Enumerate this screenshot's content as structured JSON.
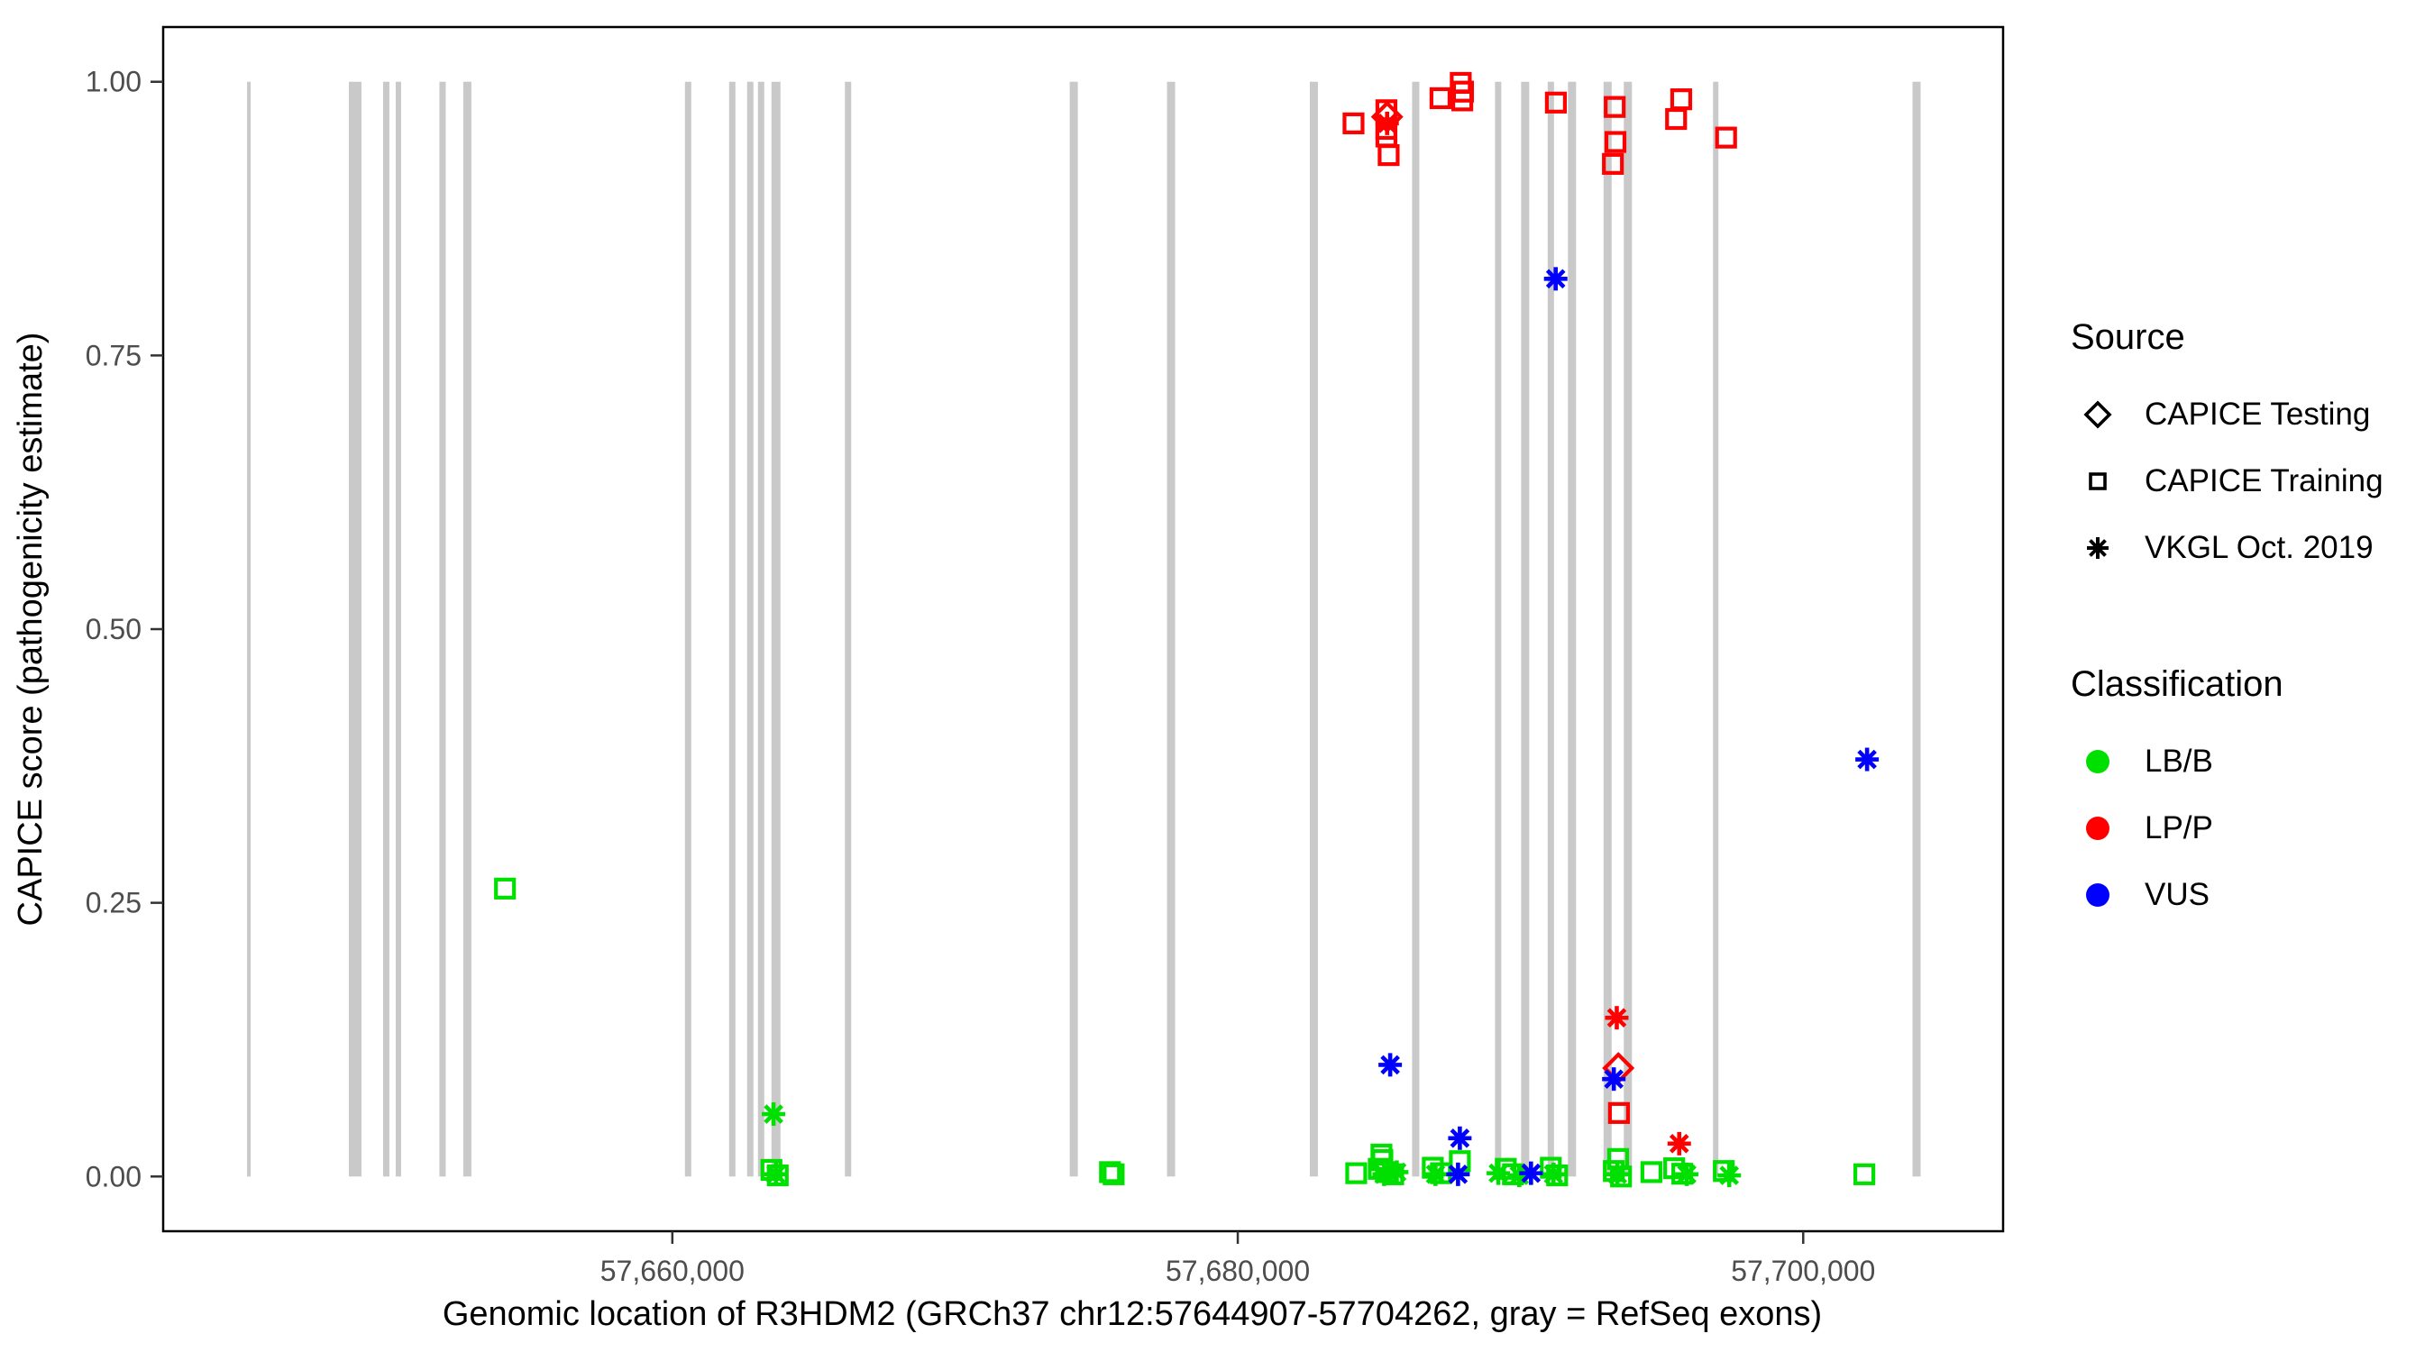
{
  "chart_data": {
    "type": "scatter",
    "title": "",
    "xlabel": "Genomic location of R3HDM2 (GRCh37 chr12:57644907-57704262, gray = RefSeq exons)",
    "ylabel": "CAPICE score (pathogenicity estimate)",
    "x_domain": [
      57641990,
      57707070
    ],
    "y_domain": [
      -0.05,
      1.05
    ],
    "grid": "off",
    "x_ticks": [
      {
        "value": 57660000,
        "label": "57,660,000"
      },
      {
        "value": 57680000,
        "label": "57,680,000"
      },
      {
        "value": 57700000,
        "label": "57,700,000"
      }
    ],
    "y_ticks": [
      {
        "value": 0.0,
        "label": "0.00"
      },
      {
        "value": 0.25,
        "label": "0.25"
      },
      {
        "value": 0.5,
        "label": "0.50"
      },
      {
        "value": 0.75,
        "label": "0.75"
      },
      {
        "value": 1.0,
        "label": "1.00"
      }
    ],
    "exon_color": "#C9C9C9",
    "exon_y_span": [
      0,
      1
    ],
    "exons": [
      {
        "start": 57644957,
        "end": 57645085
      },
      {
        "start": 57648558,
        "end": 57649004
      },
      {
        "start": 57649769,
        "end": 57649992
      },
      {
        "start": 57650215,
        "end": 57650406
      },
      {
        "start": 57651761,
        "end": 57651984
      },
      {
        "start": 57652605,
        "end": 57652892
      },
      {
        "start": 57660446,
        "end": 57660669
      },
      {
        "start": 57662008,
        "end": 57662231
      },
      {
        "start": 57662645,
        "end": 57662868
      },
      {
        "start": 57663028,
        "end": 57663251
      },
      {
        "start": 57663506,
        "end": 57663825
      },
      {
        "start": 57666104,
        "end": 57666327
      },
      {
        "start": 57674055,
        "end": 57674342
      },
      {
        "start": 57677497,
        "end": 57677784
      },
      {
        "start": 57682549,
        "end": 57682835
      },
      {
        "start": 57686166,
        "end": 57686421
      },
      {
        "start": 57689098,
        "end": 57689321
      },
      {
        "start": 57690022,
        "end": 57690309
      },
      {
        "start": 57690962,
        "end": 57691185
      },
      {
        "start": 57691679,
        "end": 57691966
      },
      {
        "start": 57692938,
        "end": 57693225
      },
      {
        "start": 57693655,
        "end": 57693942
      },
      {
        "start": 57696810,
        "end": 57697001
      },
      {
        "start": 57703866,
        "end": 57704152
      }
    ],
    "series_colors": {
      "LB/B": "#00E000",
      "LP/P": "#FF0000",
      "VUS": "#0000FF"
    },
    "shapes": {
      "CAPICE Testing": "diamond",
      "CAPICE Training": "square",
      "VKGL Oct. 2019": "asterisk"
    },
    "points": [
      {
        "pos": 57654081,
        "score": 0.263,
        "source": "CAPICE Training",
        "class": "LB/B"
      },
      {
        "pos": 57663579,
        "score": 0.057,
        "source": "VKGL Oct. 2019",
        "class": "LB/B"
      },
      {
        "pos": 57663505,
        "score": 0.006,
        "source": "CAPICE Training",
        "class": "LB/B"
      },
      {
        "pos": 57663665,
        "score": 0.002,
        "source": "VKGL Oct. 2019",
        "class": "LB/B"
      },
      {
        "pos": 57663729,
        "score": 0.001,
        "source": "CAPICE Training",
        "class": "LB/B"
      },
      {
        "pos": 57675480,
        "score": 0.004,
        "source": "CAPICE Training",
        "class": "LB/B"
      },
      {
        "pos": 57675610,
        "score": 0.002,
        "source": "CAPICE Training",
        "class": "LB/B"
      },
      {
        "pos": 57684190,
        "score": 0.003,
        "source": "CAPICE Training",
        "class": "LB/B"
      },
      {
        "pos": 57685082,
        "score": 0.02,
        "source": "CAPICE Training",
        "class": "LB/B"
      },
      {
        "pos": 57685114,
        "score": 0.015,
        "source": "CAPICE Training",
        "class": "LB/B"
      },
      {
        "pos": 57684987,
        "score": 0.007,
        "source": "CAPICE Training",
        "class": "LB/B"
      },
      {
        "pos": 57685242,
        "score": 0.004,
        "source": "CAPICE Training",
        "class": "LB/B"
      },
      {
        "pos": 57685497,
        "score": 0.002,
        "source": "CAPICE Training",
        "class": "LB/B"
      },
      {
        "pos": 57685178,
        "score": 0.002,
        "source": "VKGL Oct. 2019",
        "class": "LB/B"
      },
      {
        "pos": 57685623,
        "score": 0.004,
        "source": "VKGL Oct. 2019",
        "class": "LB/B"
      },
      {
        "pos": 57686898,
        "score": 0.008,
        "source": "CAPICE Training",
        "class": "LB/B"
      },
      {
        "pos": 57687185,
        "score": 0.003,
        "source": "CAPICE Training",
        "class": "LB/B"
      },
      {
        "pos": 57686994,
        "score": 0.002,
        "source": "VKGL Oct. 2019",
        "class": "LB/B"
      },
      {
        "pos": 57687855,
        "score": 0.014,
        "source": "CAPICE Training",
        "class": "LB/B"
      },
      {
        "pos": 57689215,
        "score": 0.003,
        "source": "VKGL Oct. 2019",
        "class": "LB/B"
      },
      {
        "pos": 57689480,
        "score": 0.007,
        "source": "CAPICE Training",
        "class": "LB/B"
      },
      {
        "pos": 57689734,
        "score": 0.002,
        "source": "CAPICE Training",
        "class": "LB/B"
      },
      {
        "pos": 57689957,
        "score": 0.001,
        "source": "VKGL Oct. 2019",
        "class": "LB/B"
      },
      {
        "pos": 57691073,
        "score": 0.008,
        "source": "CAPICE Training",
        "class": "LB/B"
      },
      {
        "pos": 57691168,
        "score": 0.002,
        "source": "VKGL Oct. 2019",
        "class": "LB/B"
      },
      {
        "pos": 57691296,
        "score": 0.001,
        "source": "CAPICE Training",
        "class": "LB/B"
      },
      {
        "pos": 57693454,
        "score": 0.016,
        "source": "CAPICE Training",
        "class": "LB/B"
      },
      {
        "pos": 57693301,
        "score": 0.005,
        "source": "CAPICE Training",
        "class": "LB/B"
      },
      {
        "pos": 57693428,
        "score": 0.002,
        "source": "VKGL Oct. 2019",
        "class": "LB/B"
      },
      {
        "pos": 57693556,
        "score": 0.0,
        "source": "CAPICE Training",
        "class": "LB/B"
      },
      {
        "pos": 57694630,
        "score": 0.004,
        "source": "CAPICE Training",
        "class": "LB/B"
      },
      {
        "pos": 57695436,
        "score": 0.0075,
        "source": "CAPICE Training",
        "class": "LB/B"
      },
      {
        "pos": 57695723,
        "score": 0.0025,
        "source": "CAPICE Training",
        "class": "LB/B"
      },
      {
        "pos": 57695882,
        "score": 0.002,
        "source": "VKGL Oct. 2019",
        "class": "LB/B"
      },
      {
        "pos": 57697192,
        "score": 0.005,
        "source": "CAPICE Training",
        "class": "LB/B"
      },
      {
        "pos": 57697383,
        "score": 0.001,
        "source": "VKGL Oct. 2019",
        "class": "LB/B"
      },
      {
        "pos": 57702163,
        "score": 0.002,
        "source": "CAPICE Training",
        "class": "LB/B"
      },
      {
        "pos": 57684094,
        "score": 0.962,
        "source": "CAPICE Training",
        "class": "LP/P"
      },
      {
        "pos": 57685257,
        "score": 0.974,
        "source": "CAPICE Training",
        "class": "LP/P"
      },
      {
        "pos": 57685282,
        "score": 0.968,
        "source": "CAPICE Testing",
        "class": "LP/P"
      },
      {
        "pos": 57685282,
        "score": 0.962,
        "source": "VKGL Oct. 2019",
        "class": "LP/P"
      },
      {
        "pos": 57685257,
        "score": 0.957,
        "source": "CAPICE Training",
        "class": "LP/P"
      },
      {
        "pos": 57685257,
        "score": 0.95,
        "source": "CAPICE Training",
        "class": "LP/P"
      },
      {
        "pos": 57685337,
        "score": 0.933,
        "source": "CAPICE Training",
        "class": "LP/P"
      },
      {
        "pos": 57687170,
        "score": 0.985,
        "source": "CAPICE Training",
        "class": "LP/P"
      },
      {
        "pos": 57687887,
        "score": 0.999,
        "source": "CAPICE Training",
        "class": "LP/P"
      },
      {
        "pos": 57687967,
        "score": 0.991,
        "source": "CAPICE Training",
        "class": "LP/P"
      },
      {
        "pos": 57687941,
        "score": 0.983,
        "source": "CAPICE Training",
        "class": "LP/P"
      },
      {
        "pos": 57691251,
        "score": 0.981,
        "source": "CAPICE Training",
        "class": "LP/P"
      },
      {
        "pos": 57693333,
        "score": 0.977,
        "source": "CAPICE Training",
        "class": "LP/P"
      },
      {
        "pos": 57693358,
        "score": 0.945,
        "source": "CAPICE Training",
        "class": "LP/P"
      },
      {
        "pos": 57693269,
        "score": 0.925,
        "source": "CAPICE Training",
        "class": "LP/P"
      },
      {
        "pos": 57695685,
        "score": 0.984,
        "source": "CAPICE Training",
        "class": "LP/P"
      },
      {
        "pos": 57695503,
        "score": 0.966,
        "source": "CAPICE Training",
        "class": "LP/P"
      },
      {
        "pos": 57697272,
        "score": 0.949,
        "source": "CAPICE Training",
        "class": "LP/P"
      },
      {
        "pos": 57693406,
        "score": 0.145,
        "source": "VKGL Oct. 2019",
        "class": "LP/P"
      },
      {
        "pos": 57693460,
        "score": 0.099,
        "source": "CAPICE Testing",
        "class": "LP/P"
      },
      {
        "pos": 57693482,
        "score": 0.058,
        "source": "CAPICE Training",
        "class": "LP/P"
      },
      {
        "pos": 57695615,
        "score": 0.03,
        "source": "VKGL Oct. 2019",
        "class": "LP/P"
      },
      {
        "pos": 57691245,
        "score": 0.82,
        "source": "VKGL Oct. 2019",
        "class": "VUS"
      },
      {
        "pos": 57702259,
        "score": 0.381,
        "source": "VKGL Oct. 2019",
        "class": "VUS"
      },
      {
        "pos": 57685391,
        "score": 0.102,
        "source": "VKGL Oct. 2019",
        "class": "VUS"
      },
      {
        "pos": 57693301,
        "score": 0.089,
        "source": "VKGL Oct. 2019",
        "class": "VUS"
      },
      {
        "pos": 57687855,
        "score": 0.035,
        "source": "VKGL Oct. 2019",
        "class": "VUS"
      },
      {
        "pos": 57687791,
        "score": 0.002,
        "source": "VKGL Oct. 2019",
        "class": "VUS"
      },
      {
        "pos": 57690372,
        "score": 0.003,
        "source": "VKGL Oct. 2019",
        "class": "VUS"
      }
    ],
    "legend_position": "right"
  },
  "legend": {
    "source": {
      "title": "Source",
      "items": [
        {
          "label": "CAPICE Testing",
          "shape": "diamond"
        },
        {
          "label": "CAPICE Training",
          "shape": "square"
        },
        {
          "label": "VKGL Oct. 2019",
          "shape": "asterisk"
        }
      ]
    },
    "classification": {
      "title": "Classification",
      "items": [
        {
          "label": "LB/B",
          "color": "#00E000"
        },
        {
          "label": "LP/P",
          "color": "#FF0000"
        },
        {
          "label": "VUS",
          "color": "#0000FF"
        }
      ]
    }
  },
  "style": {
    "tick_label_color": "#4D4D4D",
    "axis_title_color": "#000000",
    "panel_border_color": "#000000",
    "background": "#FFFFFF"
  }
}
